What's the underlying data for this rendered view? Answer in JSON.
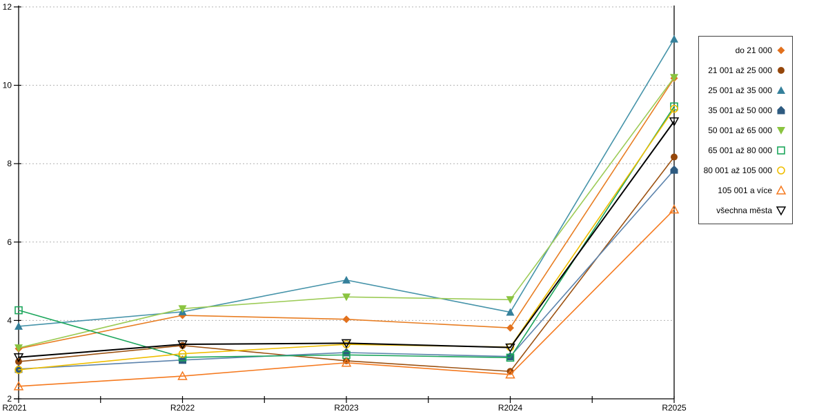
{
  "chart_data": {
    "type": "line",
    "title": "",
    "xlabel": "",
    "ylabel": "",
    "x": [
      "R2021",
      "R2022",
      "R2023",
      "R2024",
      "R2025"
    ],
    "ylim": [
      2,
      12
    ],
    "yticks": [
      2,
      4,
      6,
      8,
      10,
      12
    ],
    "grid": "horizontal-dotted",
    "grid_color": "#b0b0b0",
    "axis_color": "#000000",
    "legend_position": "right",
    "series": [
      {
        "name": "do 21 000",
        "marker": "diamond-filled",
        "color": "#e2711d",
        "line_color": "#e87d22",
        "values": [
          3.28,
          4.13,
          4.03,
          3.81,
          10.18
        ]
      },
      {
        "name": "21 001 až 25 000",
        "marker": "circle-filled",
        "color": "#95470b",
        "line_color": "#9c5110",
        "values": [
          2.95,
          3.36,
          2.97,
          2.7,
          8.17
        ]
      },
      {
        "name": "25 001 až 35 000",
        "marker": "triangle-up-filled",
        "color": "#35809b",
        "line_color": "#4593a9",
        "values": [
          3.85,
          4.22,
          5.03,
          4.21,
          11.18
        ]
      },
      {
        "name": "35 001 až 50 000",
        "marker": "pentagon-filled",
        "color": "#2e5b80",
        "line_color": "#5c83ac",
        "values": [
          2.76,
          2.99,
          3.18,
          3.08,
          7.84
        ]
      },
      {
        "name": "50 001 až 65 000",
        "marker": "triangle-down-filled",
        "color": "#8ac440",
        "line_color": "#9ccb56",
        "values": [
          3.3,
          4.3,
          4.6,
          4.53,
          10.2
        ]
      },
      {
        "name": "65 001 až 80 000",
        "marker": "square-open",
        "color": "#1ca65c",
        "line_color": "#1ca65c",
        "values": [
          4.26,
          3.06,
          3.12,
          3.05,
          9.46
        ]
      },
      {
        "name": "80 001 až 105 000",
        "marker": "circle-open",
        "color": "#efbe00",
        "line_color": "#efbe00",
        "values": [
          2.74,
          3.15,
          3.39,
          3.32,
          9.4
        ]
      },
      {
        "name": "105 001 a více",
        "marker": "triangle-up-open",
        "color": "#f5791e",
        "line_color": "#f5791e",
        "values": [
          2.32,
          2.58,
          2.92,
          2.62,
          6.83
        ]
      },
      {
        "name": "všechna města",
        "marker": "triangle-down-open",
        "color": "#000000",
        "line_color": "#000000",
        "values": [
          3.06,
          3.39,
          3.42,
          3.31,
          9.08
        ]
      }
    ]
  }
}
